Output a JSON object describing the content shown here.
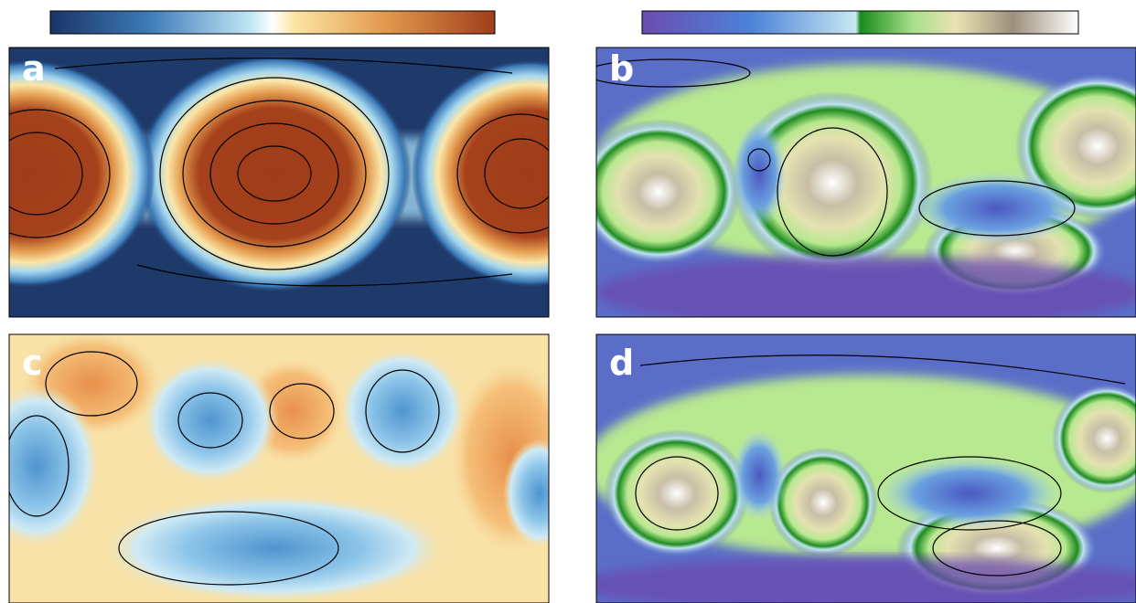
{
  "panels": [
    {
      "label": "a"
    },
    {
      "label": "b"
    },
    {
      "label": "c"
    },
    {
      "label": "d"
    }
  ]
}
